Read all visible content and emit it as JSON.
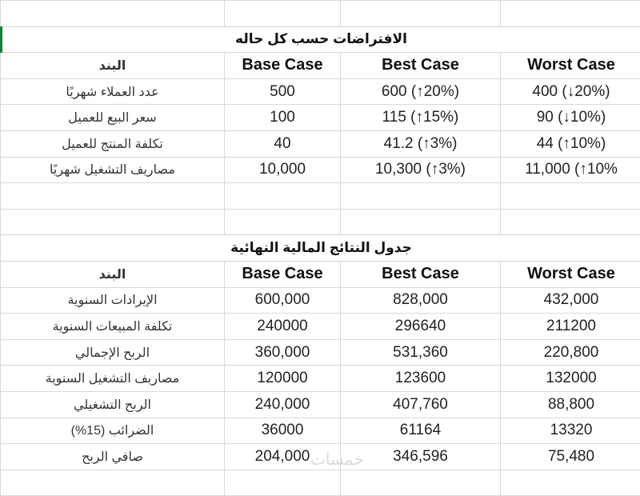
{
  "assumptions": {
    "title": "الافتراضات حسب كل حاله",
    "headers": [
      "البند",
      "Base Case",
      "Best Case",
      "Worst Case"
    ],
    "rows": [
      [
        "عدد العملاء شهريًا",
        "500",
        "600 (↑20%)",
        "400 (↓20%)"
      ],
      [
        "سعر البيع للعميل",
        "100",
        "115 (↑15%)",
        "90 (↓10%)"
      ],
      [
        "تكلفة المنتج للعميل",
        "40",
        "41.2 (↑3%)",
        "44 (↑10%)"
      ],
      [
        "مصاريف التشغيل شهريًا",
        "10,000",
        "10,300 (↑3%)",
        "11,000 (↑10%"
      ]
    ]
  },
  "results": {
    "title": "جدول النتائج المالية النهائية",
    "headers": [
      "البند",
      "Base Case",
      "Best Case",
      "Worst Case"
    ],
    "rows": [
      [
        "الإيرادات السنوية",
        "600,000",
        "828,000",
        "432,000"
      ],
      [
        "تكلفة المبيعات السنوية",
        "240000",
        "296640",
        "211200"
      ],
      [
        "الربح الإجمالي",
        "360,000",
        "531,360",
        "220,800"
      ],
      [
        "مصاريف التشغيل السنوية",
        "120000",
        "123600",
        "132000"
      ],
      [
        "الربح التشغيلي",
        "240,000",
        "407,760",
        "88,800"
      ],
      [
        "الضرائب (15%)",
        "36000",
        "61164",
        "13320"
      ],
      [
        "صافي الربح",
        "204,000",
        "346,596",
        "75,480"
      ]
    ]
  },
  "watermark": "خمسات",
  "colors": {
    "selection": "#1e7b45",
    "grid": "#d9d9d9"
  }
}
